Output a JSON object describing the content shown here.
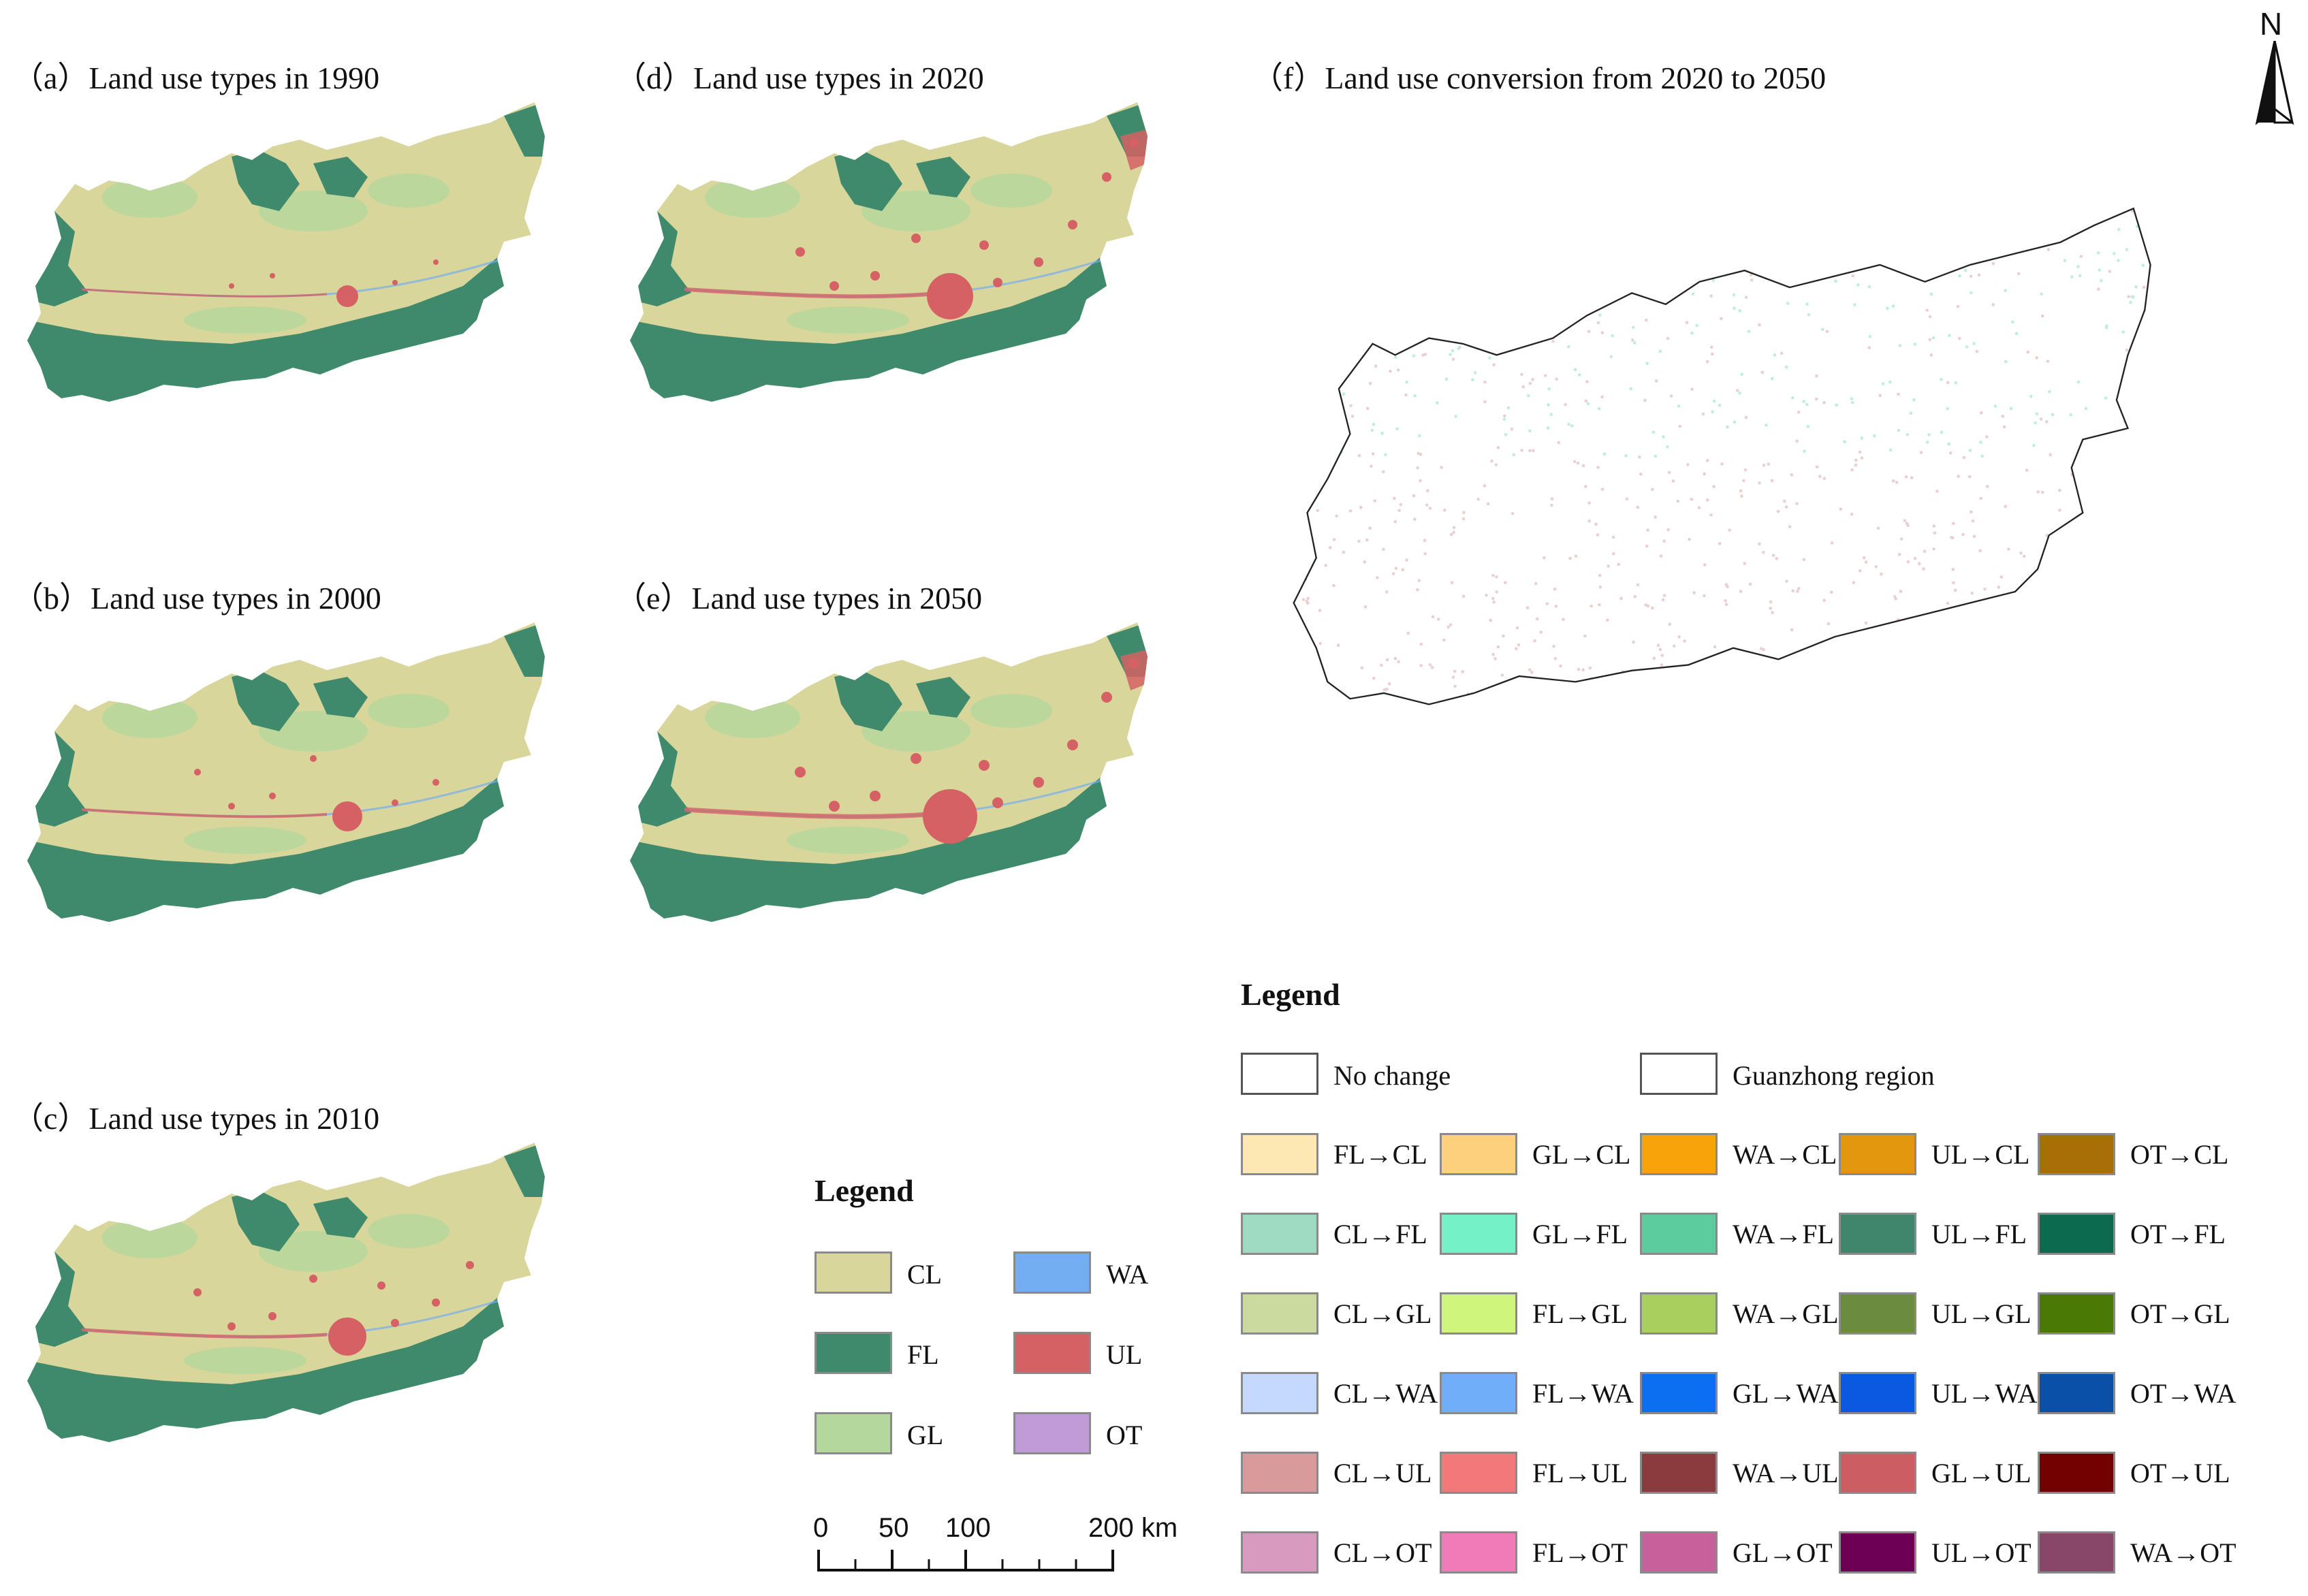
{
  "panels": [
    {
      "title": "（a）Land use types in 1990",
      "urban": 1
    },
    {
      "title": "（b）Land use types in 2000",
      "urban": 2
    },
    {
      "title": "（c）Land use types in 2010",
      "urban": 3
    },
    {
      "title": "（d）Land use types in 2020",
      "urban": 4
    },
    {
      "title": "（e）Land use types in 2050",
      "urban": 5
    }
  ],
  "conversion_panel": {
    "title": "（f）Land use conversion from 2020 to 2050"
  },
  "north": "N",
  "legend_types": {
    "title": "Legend",
    "items": [
      {
        "code": "CL",
        "color": "#d9d69b"
      },
      {
        "code": "FL",
        "color": "#3f8a6c"
      },
      {
        "code": "GL",
        "color": "#b3d79c"
      },
      {
        "code": "WA",
        "color": "#74aef2"
      },
      {
        "code": "UL",
        "color": "#d56165"
      },
      {
        "code": "OT",
        "color": "#c19ad8"
      }
    ]
  },
  "scale_bar": {
    "labels": [
      "0",
      "50",
      "100",
      "200 km"
    ]
  },
  "legend_conversion": {
    "title": "Legend",
    "no_change": "No change",
    "region": "Guanzhong region",
    "rows": [
      [
        {
          "label": "FL→CL",
          "color": "#fde8b3"
        },
        {
          "label": "GL→CL",
          "color": "#fdd07e"
        },
        {
          "label": "WA→CL",
          "color": "#f9a30a"
        },
        {
          "label": "UL→CL",
          "color": "#e2970e"
        },
        {
          "label": "OT→CL",
          "color": "#a86f07"
        }
      ],
      [
        {
          "label": "CL→FL",
          "color": "#9fdbc2"
        },
        {
          "label": "GL→FL",
          "color": "#74f1c7"
        },
        {
          "label": "WA→FL",
          "color": "#5ccb9d"
        },
        {
          "label": "UL→FL",
          "color": "#40866d"
        },
        {
          "label": "OT→FL",
          "color": "#0c6b4e"
        }
      ],
      [
        {
          "label": "CL→GL",
          "color": "#cbda9e"
        },
        {
          "label": "FL→GL",
          "color": "#cff57d"
        },
        {
          "label": "WA→GL",
          "color": "#a9cf5f"
        },
        {
          "label": "UL→GL",
          "color": "#6b8b3f"
        },
        {
          "label": "OT→GL",
          "color": "#4a7a05"
        }
      ],
      [
        {
          "label": "CL→WA",
          "color": "#c5d9fe"
        },
        {
          "label": "FL→WA",
          "color": "#70aefa"
        },
        {
          "label": "GL→WA",
          "color": "#0c6ff2"
        },
        {
          "label": "UL→WA",
          "color": "#0b58e1"
        },
        {
          "label": "OT→WA",
          "color": "#0a50a9"
        }
      ],
      [
        {
          "label": "CL→UL",
          "color": "#d99a9b"
        },
        {
          "label": "FL→UL",
          "color": "#f2787a"
        },
        {
          "label": "WA→UL",
          "color": "#8b3b3d"
        },
        {
          "label": "GL→UL",
          "color": "#cb5d63"
        },
        {
          "label": "OT→UL",
          "color": "#740102"
        }
      ],
      [
        {
          "label": "CL→OT",
          "color": "#d89abe"
        },
        {
          "label": "FL→OT",
          "color": "#f17ab8"
        },
        {
          "label": "GL→OT",
          "color": "#c8609c"
        },
        {
          "label": "UL→OT",
          "color": "#6d0055"
        },
        {
          "label": "WA→OT",
          "color": "#884668"
        }
      ]
    ]
  }
}
